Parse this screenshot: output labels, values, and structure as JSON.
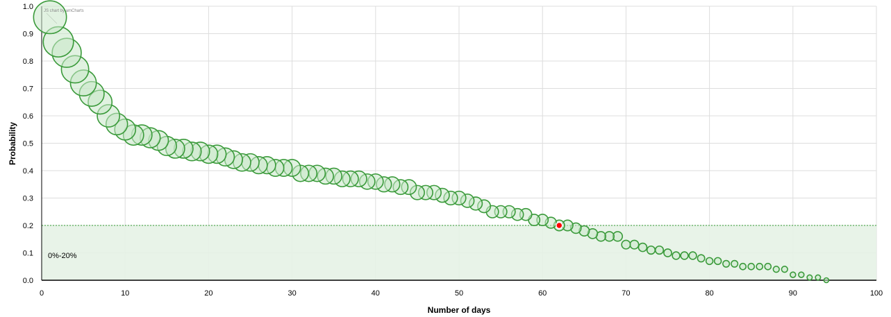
{
  "chart_data": {
    "type": "scatter",
    "credit": "JS chart by amCharts",
    "xlabel": "Number of days",
    "ylabel": "Probability",
    "xlim": [
      0,
      100
    ],
    "ylim": [
      0,
      1
    ],
    "x_ticks": [
      "0",
      "10",
      "20",
      "30",
      "40",
      "50",
      "60",
      "70",
      "80",
      "90",
      "100"
    ],
    "y_ticks": [
      "0.0",
      "0.1",
      "0.2",
      "0.3",
      "0.4",
      "0.5",
      "0.6",
      "0.7",
      "0.8",
      "0.9",
      "1.0"
    ],
    "grid": true,
    "guide_band": {
      "label": "0%-20%",
      "from": 0,
      "to": 0.2
    },
    "highlight_point": {
      "x": 62,
      "y": 0.2
    },
    "colors": {
      "bubble": "#3a9a3a",
      "bubble_fill": "#c9e8c9",
      "band": "#e5f2e5",
      "guide_line": "#55aa55",
      "highlight": "#ff0000"
    },
    "series": [
      {
        "points": [
          [
            1,
            0.96
          ],
          [
            2,
            0.87
          ],
          [
            3,
            0.83
          ],
          [
            4,
            0.77
          ],
          [
            5,
            0.72
          ],
          [
            6,
            0.68
          ],
          [
            7,
            0.65
          ],
          [
            8,
            0.6
          ],
          [
            9,
            0.57
          ],
          [
            10,
            0.55
          ],
          [
            11,
            0.53
          ],
          [
            12,
            0.53
          ],
          [
            13,
            0.52
          ],
          [
            14,
            0.51
          ],
          [
            15,
            0.49
          ],
          [
            16,
            0.48
          ],
          [
            17,
            0.48
          ],
          [
            18,
            0.47
          ],
          [
            19,
            0.47
          ],
          [
            20,
            0.46
          ],
          [
            21,
            0.46
          ],
          [
            22,
            0.45
          ],
          [
            23,
            0.44
          ],
          [
            24,
            0.43
          ],
          [
            25,
            0.43
          ],
          [
            26,
            0.42
          ],
          [
            27,
            0.42
          ],
          [
            28,
            0.41
          ],
          [
            29,
            0.41
          ],
          [
            30,
            0.41
          ],
          [
            31,
            0.39
          ],
          [
            32,
            0.39
          ],
          [
            33,
            0.39
          ],
          [
            34,
            0.38
          ],
          [
            35,
            0.38
          ],
          [
            36,
            0.37
          ],
          [
            37,
            0.37
          ],
          [
            38,
            0.37
          ],
          [
            39,
            0.36
          ],
          [
            40,
            0.36
          ],
          [
            41,
            0.35
          ],
          [
            42,
            0.35
          ],
          [
            43,
            0.34
          ],
          [
            44,
            0.34
          ],
          [
            45,
            0.32
          ],
          [
            46,
            0.32
          ],
          [
            47,
            0.32
          ],
          [
            48,
            0.31
          ],
          [
            49,
            0.3
          ],
          [
            50,
            0.3
          ],
          [
            51,
            0.29
          ],
          [
            52,
            0.28
          ],
          [
            53,
            0.27
          ],
          [
            54,
            0.25
          ],
          [
            55,
            0.25
          ],
          [
            56,
            0.25
          ],
          [
            57,
            0.24
          ],
          [
            58,
            0.24
          ],
          [
            59,
            0.22
          ],
          [
            60,
            0.22
          ],
          [
            61,
            0.21
          ],
          [
            62,
            0.2
          ],
          [
            63,
            0.2
          ],
          [
            64,
            0.19
          ],
          [
            65,
            0.18
          ],
          [
            66,
            0.17
          ],
          [
            67,
            0.16
          ],
          [
            68,
            0.16
          ],
          [
            69,
            0.16
          ],
          [
            70,
            0.13
          ],
          [
            71,
            0.13
          ],
          [
            72,
            0.12
          ],
          [
            73,
            0.11
          ],
          [
            74,
            0.11
          ],
          [
            75,
            0.1
          ],
          [
            76,
            0.09
          ],
          [
            77,
            0.09
          ],
          [
            78,
            0.09
          ],
          [
            79,
            0.08
          ],
          [
            80,
            0.07
          ],
          [
            81,
            0.07
          ],
          [
            82,
            0.06
          ],
          [
            83,
            0.06
          ],
          [
            84,
            0.05
          ],
          [
            85,
            0.05
          ],
          [
            86,
            0.05
          ],
          [
            87,
            0.05
          ],
          [
            88,
            0.04
          ],
          [
            89,
            0.04
          ],
          [
            90,
            0.02
          ],
          [
            91,
            0.02
          ],
          [
            92,
            0.01
          ],
          [
            93,
            0.01
          ],
          [
            94,
            0.0
          ]
        ]
      }
    ]
  }
}
